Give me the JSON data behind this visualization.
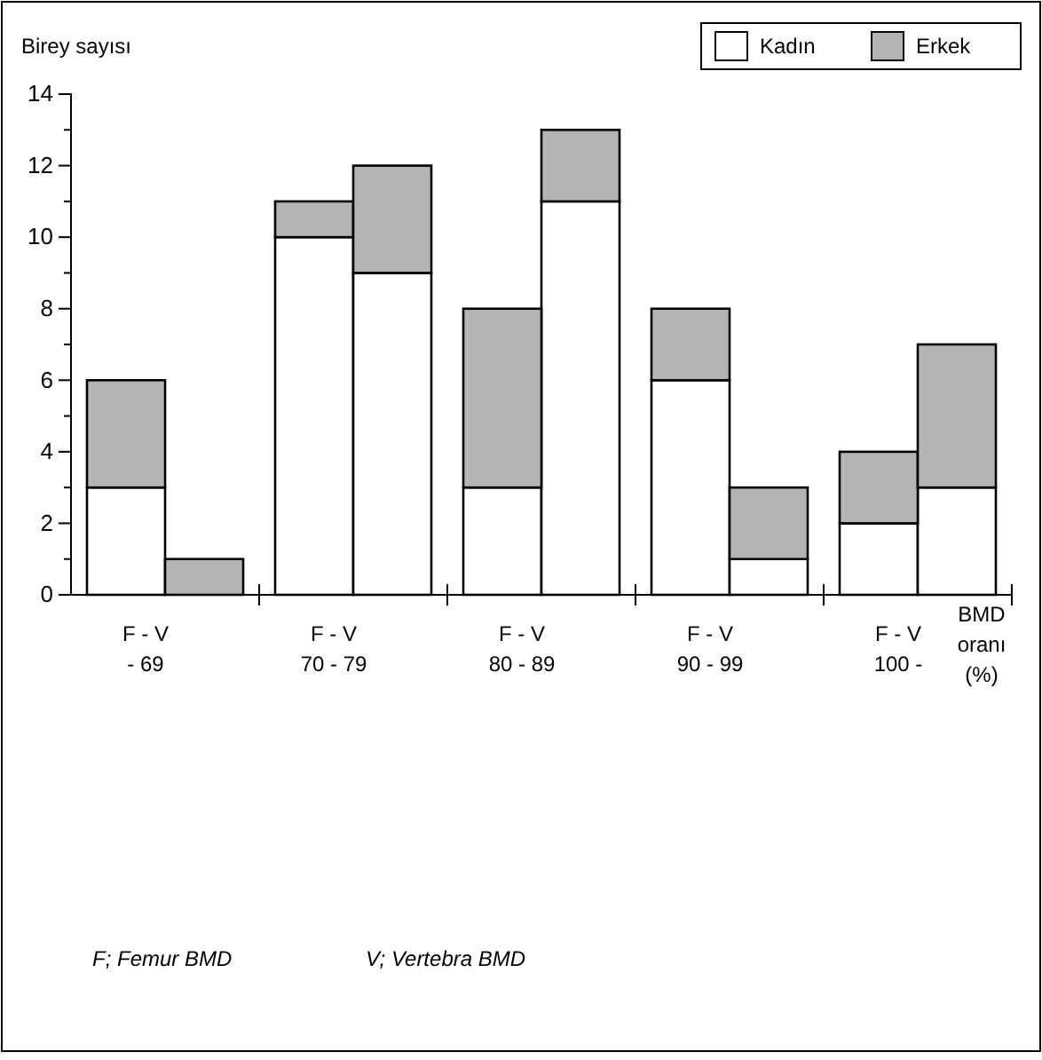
{
  "chart_data": {
    "type": "bar",
    "stacked": true,
    "ylabel": "Birey sayısı",
    "xlabel": "BMD\noranı\n(%)",
    "categories": [
      "F - V\n- 69",
      null,
      "F - V\n70 - 79",
      null,
      "F - V\n80 - 89",
      null,
      "F - V\n90 - 99",
      null,
      "F - V\n100 -",
      null
    ],
    "series": [
      {
        "name": "Kadın",
        "color": "#ffffff",
        "values": [
          3,
          0,
          10,
          9,
          3,
          11,
          6,
          1,
          2,
          3
        ]
      },
      {
        "name": "Erkek",
        "color": "#b4b4b4",
        "values": [
          3,
          1,
          1,
          3,
          5,
          2,
          2,
          2,
          2,
          4
        ]
      }
    ],
    "ylim": [
      0,
      14
    ],
    "yticks": [
      0,
      {
        "value": 1,
        "label": null
      },
      2,
      {
        "value": 3,
        "label": null
      },
      4,
      {
        "value": 5,
        "label": null
      },
      6,
      {
        "value": 7,
        "label": null
      },
      8,
      {
        "value": 9,
        "label": null
      },
      10,
      {
        "value": 11,
        "label": null
      },
      12,
      {
        "value": 13,
        "label": null
      },
      14
    ],
    "legend": "top right",
    "grid": false,
    "annotations": [
      "F; Femur BMD",
      "V; Vertebra BMD"
    ]
  }
}
